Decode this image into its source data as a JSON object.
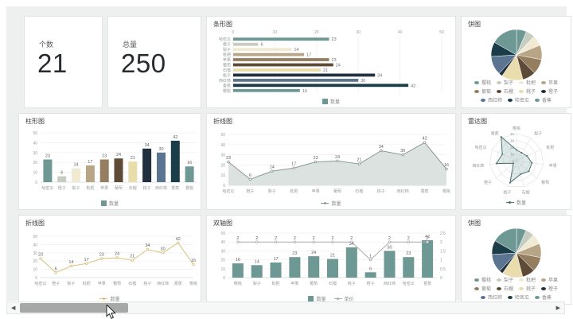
{
  "palette": [
    "#6D9894",
    "#C6CCBF",
    "#F1EAD3",
    "#B7A585",
    "#957E60",
    "#5E4A37",
    "#EADDAD",
    "#21303F",
    "#5B7490",
    "#1B3C49"
  ],
  "accent_teal": "#6D9894",
  "background": "#EEF0EF",
  "kpis": [
    {
      "label": "个数",
      "value": "21"
    },
    {
      "label": "总量",
      "value": "250"
    }
  ],
  "legend_labels": {
    "quantity": "数量",
    "price": "单价"
  },
  "scrollbar": {
    "left_arrow": "◀",
    "right_arrow": "▶"
  },
  "chart_data": [
    {
      "id": "hbar",
      "type": "bar",
      "orientation": "horizontal",
      "title": "条形图",
      "categories": [
        "哈密瓜",
        "橙子",
        "梨子",
        "枇杷",
        "苹果",
        "葡萄",
        "石榴",
        "桃子",
        "西红柿",
        "香蕉",
        "樱桃"
      ],
      "values": [
        23,
        6,
        14,
        17,
        23,
        24,
        21,
        34,
        30,
        42,
        16
      ],
      "xlim": [
        0,
        50
      ],
      "xticks": [
        0,
        10,
        20,
        30,
        40,
        50
      ],
      "legend": [
        "数量"
      ],
      "color_by_category": true,
      "axis_position": "top"
    },
    {
      "id": "pie1",
      "type": "pie",
      "title": "饼图",
      "categories": [
        "樱桃",
        "梨子",
        "枇杷",
        "苹果",
        "葡萄",
        "石榴",
        "桃子",
        "橙子",
        "西红柿",
        "哈密瓜",
        "香蕉"
      ],
      "values": [
        16,
        14,
        17,
        23,
        24,
        21,
        34,
        6,
        30,
        23,
        42
      ],
      "start_angle": "top",
      "direction": "clockwise",
      "legend_position": "bottom"
    },
    {
      "id": "vbar",
      "type": "bar",
      "orientation": "vertical",
      "title": "柱形图",
      "categories": [
        "哈密瓜",
        "橙子",
        "梨子",
        "枇杷",
        "苹果",
        "葡萄",
        "石榴",
        "桃子",
        "西红柿",
        "香蕉",
        "樱桃"
      ],
      "values": [
        23,
        6,
        14,
        17,
        23,
        24,
        21,
        34,
        30,
        42,
        16
      ],
      "ylim": [
        0,
        50
      ],
      "yticks": [
        0,
        10,
        20,
        30,
        40,
        50
      ],
      "legend": [
        "数量"
      ],
      "color_by_category": true
    },
    {
      "id": "area",
      "type": "area",
      "title": "折线图",
      "categories": [
        "哈密瓜",
        "橙子",
        "梨子",
        "枇杷",
        "苹果",
        "葡萄",
        "石榴",
        "桃子",
        "西红柿",
        "香蕉",
        "樱桃"
      ],
      "values": [
        23,
        6,
        14,
        17,
        23,
        24,
        21,
        34,
        30,
        42,
        16
      ],
      "ylim": [
        0,
        50
      ],
      "yticks": [
        0,
        10,
        20,
        30,
        40,
        50
      ],
      "legend": [
        "数量"
      ],
      "line_color": "#8C9A99",
      "fill_color": "#DBE2DF"
    },
    {
      "id": "radar",
      "type": "radar",
      "title": "雷达图",
      "indicators": [
        "樱桃",
        "梨子",
        "枇杷",
        "苹果",
        "葡萄",
        "石榴",
        "桃子",
        "橙子",
        "西红柿",
        "哈密瓜",
        "香蕉"
      ],
      "values": [
        16,
        14,
        17,
        23,
        24,
        21,
        34,
        6,
        30,
        23,
        42
      ],
      "max": 40,
      "ticks": [
        0,
        10,
        20,
        30,
        40
      ],
      "legend": [
        "数量"
      ],
      "line_color": "#4C736F"
    },
    {
      "id": "line2",
      "type": "line",
      "title": "折线图",
      "categories": [
        "哈密瓜",
        "橙子",
        "梨子",
        "枇杷",
        "苹果",
        "葡萄",
        "石榴",
        "桃子",
        "西红柿",
        "香蕉",
        "樱桃"
      ],
      "values": [
        23,
        6,
        14,
        17,
        23,
        24,
        21,
        34,
        30,
        42,
        16
      ],
      "ylim": [
        0,
        50
      ],
      "yticks": [
        0,
        10,
        20,
        30,
        40,
        50
      ],
      "legend": [
        "数量"
      ],
      "line_color": "#D9C17D"
    },
    {
      "id": "dual",
      "type": "dual",
      "title": "双轴图",
      "categories": [
        "樱桃",
        "梨子",
        "枇杷",
        "苹果",
        "葡萄",
        "石榴",
        "桃子",
        "橙子",
        "西红柿",
        "哈密瓜",
        "香蕉"
      ],
      "series": [
        {
          "name": "数量",
          "type": "bar",
          "axis": "left",
          "values": [
            16,
            14,
            17,
            23,
            24,
            21,
            34,
            6,
            30,
            23,
            42
          ]
        },
        {
          "name": "单价",
          "type": "line",
          "axis": "right",
          "values": [
            2,
            2,
            2,
            2,
            2,
            2,
            2,
            1,
            2,
            2,
            2
          ]
        }
      ],
      "ylim_left": [
        0,
        50
      ],
      "yticks_left": [
        0,
        10,
        20,
        30,
        40,
        50
      ],
      "ylim_right": [
        0,
        2.5
      ],
      "yticks_right": [
        "0",
        "0.5",
        "1",
        "1.5",
        "2",
        "2.5"
      ],
      "bar_color": "#6D9894",
      "line_color": "#ABABAB"
    },
    {
      "id": "pie2",
      "type": "pie",
      "title": "饼图",
      "categories": [
        "樱桃",
        "梨子",
        "枇杷",
        "苹果",
        "葡萄",
        "石榴",
        "桃子",
        "橙子",
        "西红柿",
        "哈密瓜",
        "香蕉"
      ],
      "values": [
        16,
        14,
        17,
        23,
        24,
        21,
        34,
        6,
        30,
        23,
        42
      ],
      "start_angle": "top",
      "direction": "clockwise",
      "legend_position": "bottom"
    }
  ]
}
